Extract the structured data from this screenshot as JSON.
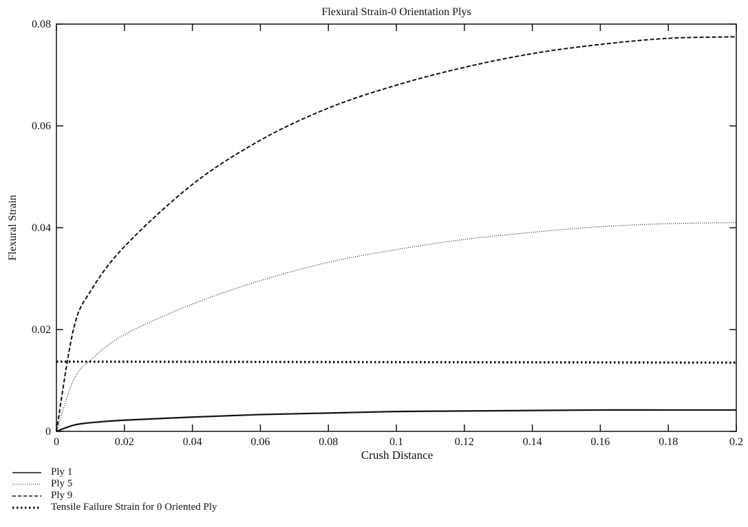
{
  "chart_data": {
    "type": "line",
    "title": "Flexural Strain-0 Orientation Plys",
    "xlabel": "Crush Distance",
    "ylabel": "Flexural Strain",
    "xlim": [
      0,
      0.2
    ],
    "ylim": [
      0,
      0.08
    ],
    "x_ticks": [
      "0",
      "0.02",
      "0.04",
      "0.06",
      "0.08",
      "0.1",
      "0.12",
      "0.14",
      "0.16",
      "0.18",
      "0.2"
    ],
    "y_ticks": [
      "0",
      "0.02",
      "0.04",
      "0.06",
      "0.08"
    ],
    "grid": false,
    "legend_position": "bottom-left",
    "series": [
      {
        "name": "Ply 1",
        "style": "solid",
        "x": [
          0,
          0.005,
          0.01,
          0.02,
          0.04,
          0.06,
          0.08,
          0.1,
          0.12,
          0.14,
          0.16,
          0.18,
          0.2
        ],
        "y": [
          0,
          0.0012,
          0.0017,
          0.0022,
          0.0028,
          0.0033,
          0.0036,
          0.0039,
          0.004,
          0.0041,
          0.0042,
          0.0042,
          0.0042
        ]
      },
      {
        "name": "Ply 5",
        "style": "dotted-fine",
        "x": [
          0,
          0.005,
          0.01,
          0.02,
          0.04,
          0.06,
          0.08,
          0.1,
          0.12,
          0.14,
          0.16,
          0.18,
          0.2
        ],
        "y": [
          0,
          0.01,
          0.014,
          0.019,
          0.025,
          0.0296,
          0.0332,
          0.0357,
          0.0377,
          0.0391,
          0.0402,
          0.0408,
          0.041
        ]
      },
      {
        "name": "Ply 9",
        "style": "dashed",
        "x": [
          0,
          0.005,
          0.01,
          0.02,
          0.04,
          0.06,
          0.08,
          0.1,
          0.12,
          0.14,
          0.16,
          0.18,
          0.2
        ],
        "y": [
          0,
          0.02,
          0.0275,
          0.0363,
          0.0485,
          0.0572,
          0.0635,
          0.068,
          0.0715,
          0.0742,
          0.076,
          0.0772,
          0.0775
        ]
      },
      {
        "name": "Tensile Failure Strain for 0 Oriented Ply",
        "style": "dotted-bold",
        "x": [
          0,
          0.2
        ],
        "y": [
          0.0137,
          0.0135
        ]
      }
    ]
  },
  "legend": {
    "items": [
      "Ply 1",
      "Ply 5",
      "Ply 9",
      "Tensile Failure Strain for 0 Oriented Ply"
    ]
  }
}
